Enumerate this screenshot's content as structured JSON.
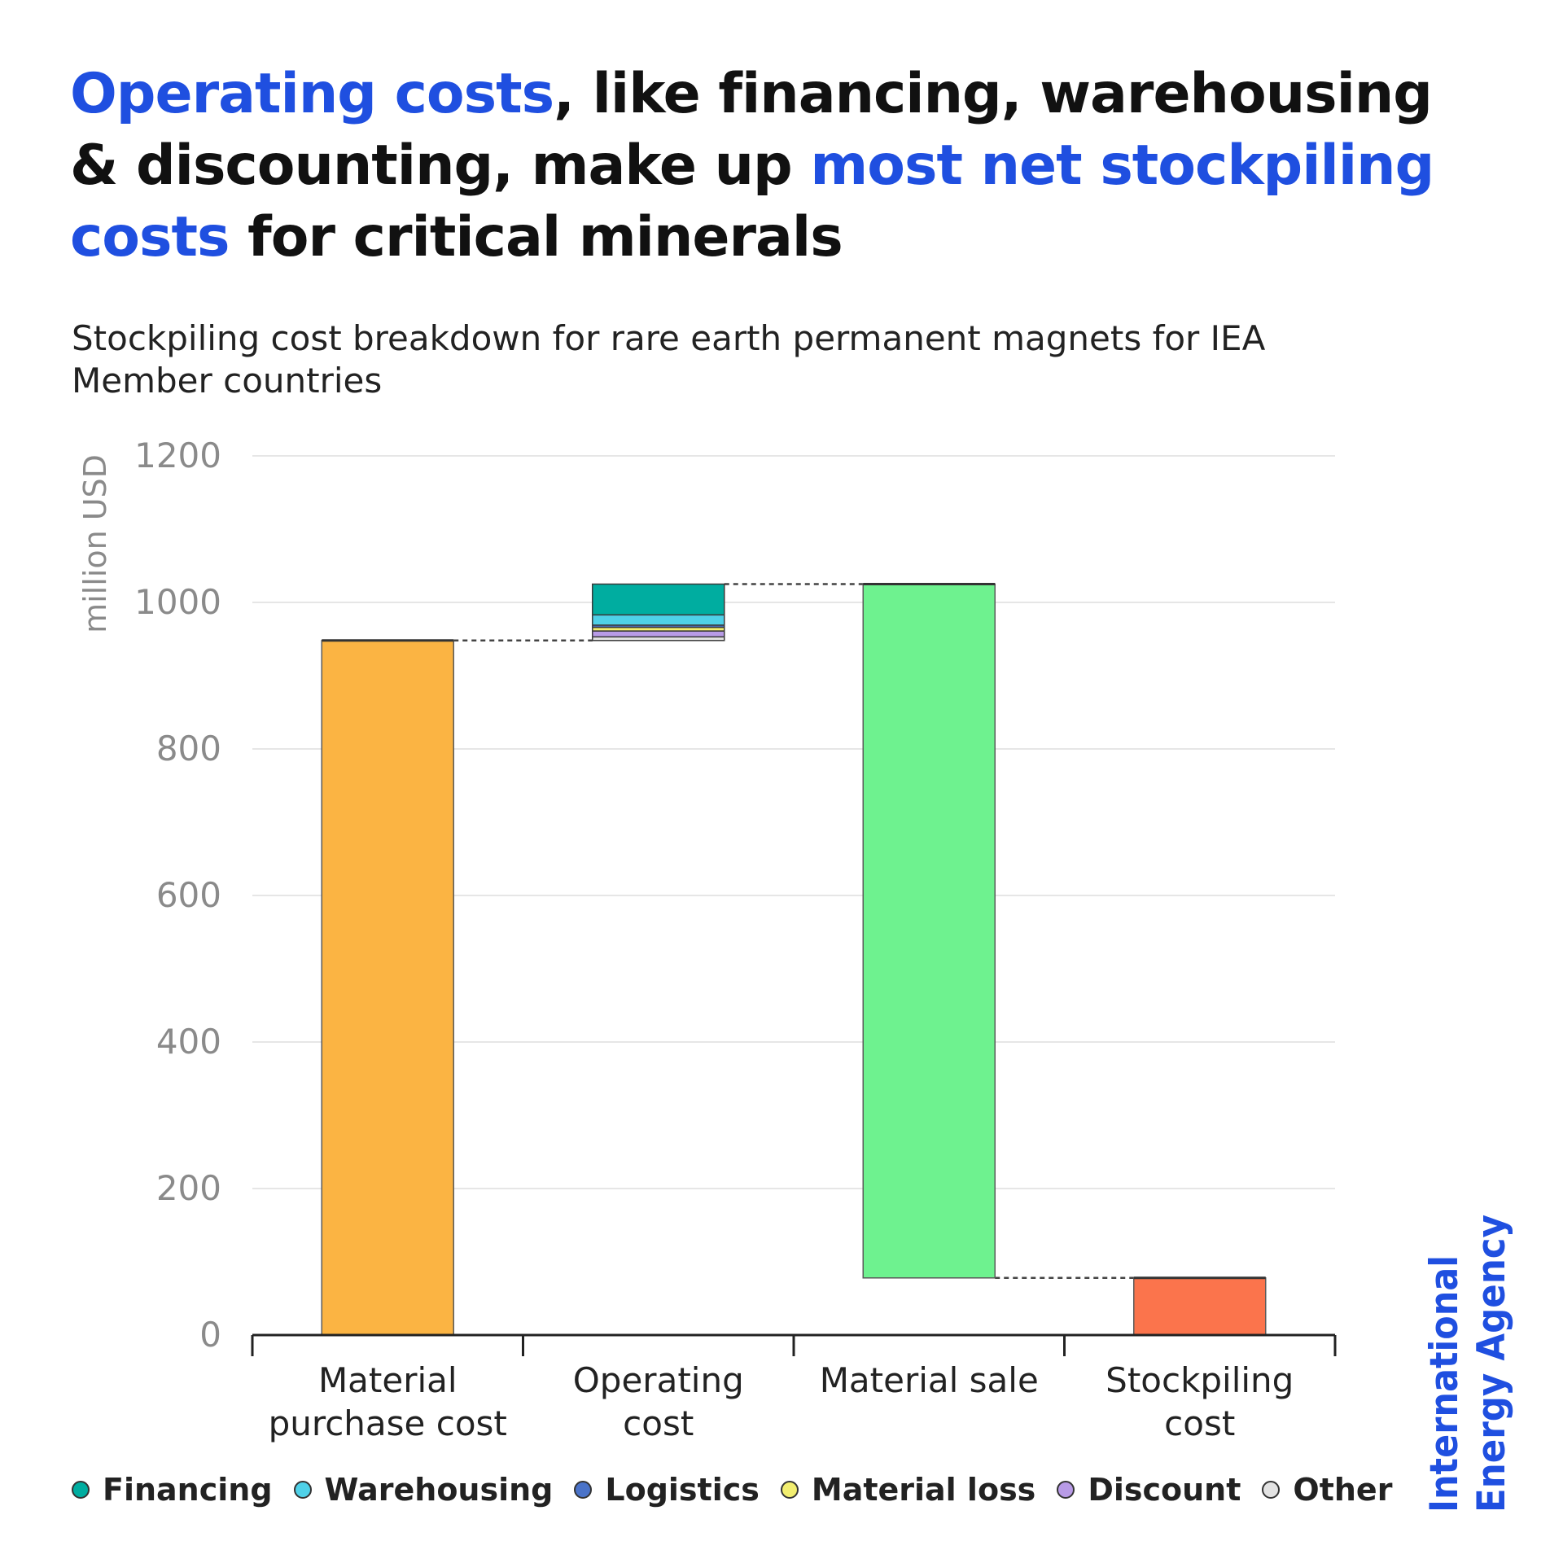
{
  "headline": {
    "part1": "Operating costs",
    "part2": ", like financing, warehousing & discounting, make up ",
    "part3": "most net stockpiling costs",
    "part4": " for critical minerals"
  },
  "subtitle": "Stockpiling cost breakdown for rare earth permanent magnets for IEA Member countries",
  "logo": {
    "line1": "International",
    "line2": "Energy Agency"
  },
  "colors": {
    "accent": "#1f4fe0",
    "material_purchase": "#fbb443",
    "material_sale": "#6ef28f",
    "stockpiling": "#fb744c",
    "financing": "#00ada0",
    "warehousing": "#4fd1e8",
    "logistics": "#4a73c9",
    "material_loss": "#f2ee70",
    "discount": "#b89be6",
    "other": "#e3e3e3"
  },
  "legend": [
    {
      "name": "Financing",
      "color": "#00ada0"
    },
    {
      "name": "Warehousing",
      "color": "#4fd1e8"
    },
    {
      "name": "Logistics",
      "color": "#4a73c9"
    },
    {
      "name": "Material loss",
      "color": "#f2ee70"
    },
    {
      "name": "Discount",
      "color": "#b89be6"
    },
    {
      "name": "Other",
      "color": "#e3e3e3"
    }
  ],
  "chart_data": {
    "type": "bar",
    "subtype": "waterfall",
    "ylabel": "million USD",
    "ylim": [
      0,
      1200
    ],
    "yticks": [
      0,
      200,
      400,
      600,
      800,
      1000,
      1200
    ],
    "grid": true,
    "legend_position": "bottom",
    "categories": [
      "Material purchase cost",
      "Operating cost",
      "Material sale",
      "Stockpiling cost"
    ],
    "category_labels": [
      [
        "Material",
        "purchase cost"
      ],
      [
        "Operating",
        "cost"
      ],
      [
        "Material sale"
      ],
      [
        "Stockpiling",
        "cost"
      ]
    ],
    "bars": [
      {
        "category": "Material purchase cost",
        "base": 0,
        "value": 948,
        "color": "#fbb443"
      },
      {
        "category": "Operating cost",
        "base": 948,
        "stack": [
          {
            "name": "Other",
            "value": 5,
            "color": "#e3e3e3"
          },
          {
            "name": "Discount",
            "value": 8,
            "color": "#b89be6"
          },
          {
            "name": "Material loss",
            "value": 5,
            "color": "#f2ee70"
          },
          {
            "name": "Logistics",
            "value": 3,
            "color": "#4a73c9"
          },
          {
            "name": "Warehousing",
            "value": 14,
            "color": "#4fd1e8"
          },
          {
            "name": "Financing",
            "value": 42,
            "color": "#00ada0"
          }
        ]
      },
      {
        "category": "Material sale",
        "base": 78,
        "value": 947,
        "color": "#6ef28f"
      },
      {
        "category": "Stockpiling cost",
        "base": 0,
        "value": 78,
        "color": "#fb744c"
      }
    ],
    "connectors": [
      {
        "from": 0,
        "to": 1,
        "value": 948
      },
      {
        "from": 1,
        "to": 2,
        "value": 1025
      },
      {
        "from": 2,
        "to": 3,
        "value": 78
      }
    ]
  }
}
